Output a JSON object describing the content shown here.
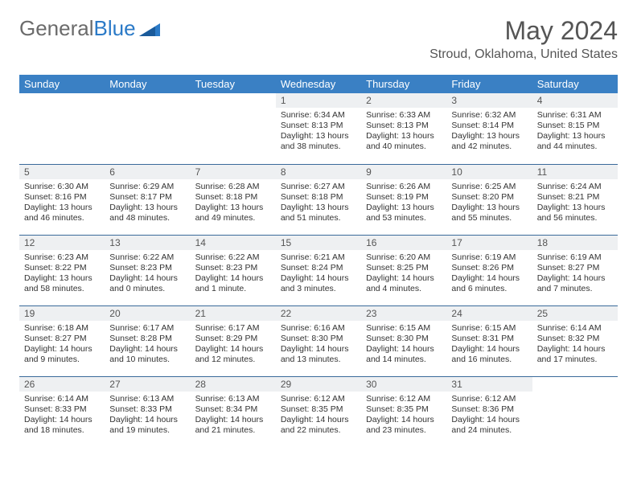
{
  "branding": {
    "logo_word1": "General",
    "logo_word2": "Blue",
    "logo_text_color": "#6b6b6b",
    "logo_accent_color": "#2b7ac7",
    "icon_color": "#2b7ac7"
  },
  "header": {
    "month_title": "May 2024",
    "location": "Stroud, Oklahoma, United States",
    "title_color": "#555555"
  },
  "calendar": {
    "header_bg": "#3a80c4",
    "header_fg": "#ffffff",
    "daynum_bg": "#eef0f2",
    "row_border": "#3a6a9a",
    "weekdays": [
      "Sunday",
      "Monday",
      "Tuesday",
      "Wednesday",
      "Thursday",
      "Friday",
      "Saturday"
    ],
    "weeks": [
      [
        {
          "empty": true
        },
        {
          "empty": true
        },
        {
          "empty": true
        },
        {
          "day": "1",
          "sunrise": "Sunrise: 6:34 AM",
          "sunset": "Sunset: 8:13 PM",
          "daylight": "Daylight: 13 hours and 38 minutes."
        },
        {
          "day": "2",
          "sunrise": "Sunrise: 6:33 AM",
          "sunset": "Sunset: 8:13 PM",
          "daylight": "Daylight: 13 hours and 40 minutes."
        },
        {
          "day": "3",
          "sunrise": "Sunrise: 6:32 AM",
          "sunset": "Sunset: 8:14 PM",
          "daylight": "Daylight: 13 hours and 42 minutes."
        },
        {
          "day": "4",
          "sunrise": "Sunrise: 6:31 AM",
          "sunset": "Sunset: 8:15 PM",
          "daylight": "Daylight: 13 hours and 44 minutes."
        }
      ],
      [
        {
          "day": "5",
          "sunrise": "Sunrise: 6:30 AM",
          "sunset": "Sunset: 8:16 PM",
          "daylight": "Daylight: 13 hours and 46 minutes."
        },
        {
          "day": "6",
          "sunrise": "Sunrise: 6:29 AM",
          "sunset": "Sunset: 8:17 PM",
          "daylight": "Daylight: 13 hours and 48 minutes."
        },
        {
          "day": "7",
          "sunrise": "Sunrise: 6:28 AM",
          "sunset": "Sunset: 8:18 PM",
          "daylight": "Daylight: 13 hours and 49 minutes."
        },
        {
          "day": "8",
          "sunrise": "Sunrise: 6:27 AM",
          "sunset": "Sunset: 8:18 PM",
          "daylight": "Daylight: 13 hours and 51 minutes."
        },
        {
          "day": "9",
          "sunrise": "Sunrise: 6:26 AM",
          "sunset": "Sunset: 8:19 PM",
          "daylight": "Daylight: 13 hours and 53 minutes."
        },
        {
          "day": "10",
          "sunrise": "Sunrise: 6:25 AM",
          "sunset": "Sunset: 8:20 PM",
          "daylight": "Daylight: 13 hours and 55 minutes."
        },
        {
          "day": "11",
          "sunrise": "Sunrise: 6:24 AM",
          "sunset": "Sunset: 8:21 PM",
          "daylight": "Daylight: 13 hours and 56 minutes."
        }
      ],
      [
        {
          "day": "12",
          "sunrise": "Sunrise: 6:23 AM",
          "sunset": "Sunset: 8:22 PM",
          "daylight": "Daylight: 13 hours and 58 minutes."
        },
        {
          "day": "13",
          "sunrise": "Sunrise: 6:22 AM",
          "sunset": "Sunset: 8:23 PM",
          "daylight": "Daylight: 14 hours and 0 minutes."
        },
        {
          "day": "14",
          "sunrise": "Sunrise: 6:22 AM",
          "sunset": "Sunset: 8:23 PM",
          "daylight": "Daylight: 14 hours and 1 minute."
        },
        {
          "day": "15",
          "sunrise": "Sunrise: 6:21 AM",
          "sunset": "Sunset: 8:24 PM",
          "daylight": "Daylight: 14 hours and 3 minutes."
        },
        {
          "day": "16",
          "sunrise": "Sunrise: 6:20 AM",
          "sunset": "Sunset: 8:25 PM",
          "daylight": "Daylight: 14 hours and 4 minutes."
        },
        {
          "day": "17",
          "sunrise": "Sunrise: 6:19 AM",
          "sunset": "Sunset: 8:26 PM",
          "daylight": "Daylight: 14 hours and 6 minutes."
        },
        {
          "day": "18",
          "sunrise": "Sunrise: 6:19 AM",
          "sunset": "Sunset: 8:27 PM",
          "daylight": "Daylight: 14 hours and 7 minutes."
        }
      ],
      [
        {
          "day": "19",
          "sunrise": "Sunrise: 6:18 AM",
          "sunset": "Sunset: 8:27 PM",
          "daylight": "Daylight: 14 hours and 9 minutes."
        },
        {
          "day": "20",
          "sunrise": "Sunrise: 6:17 AM",
          "sunset": "Sunset: 8:28 PM",
          "daylight": "Daylight: 14 hours and 10 minutes."
        },
        {
          "day": "21",
          "sunrise": "Sunrise: 6:17 AM",
          "sunset": "Sunset: 8:29 PM",
          "daylight": "Daylight: 14 hours and 12 minutes."
        },
        {
          "day": "22",
          "sunrise": "Sunrise: 6:16 AM",
          "sunset": "Sunset: 8:30 PM",
          "daylight": "Daylight: 14 hours and 13 minutes."
        },
        {
          "day": "23",
          "sunrise": "Sunrise: 6:15 AM",
          "sunset": "Sunset: 8:30 PM",
          "daylight": "Daylight: 14 hours and 14 minutes."
        },
        {
          "day": "24",
          "sunrise": "Sunrise: 6:15 AM",
          "sunset": "Sunset: 8:31 PM",
          "daylight": "Daylight: 14 hours and 16 minutes."
        },
        {
          "day": "25",
          "sunrise": "Sunrise: 6:14 AM",
          "sunset": "Sunset: 8:32 PM",
          "daylight": "Daylight: 14 hours and 17 minutes."
        }
      ],
      [
        {
          "day": "26",
          "sunrise": "Sunrise: 6:14 AM",
          "sunset": "Sunset: 8:33 PM",
          "daylight": "Daylight: 14 hours and 18 minutes."
        },
        {
          "day": "27",
          "sunrise": "Sunrise: 6:13 AM",
          "sunset": "Sunset: 8:33 PM",
          "daylight": "Daylight: 14 hours and 19 minutes."
        },
        {
          "day": "28",
          "sunrise": "Sunrise: 6:13 AM",
          "sunset": "Sunset: 8:34 PM",
          "daylight": "Daylight: 14 hours and 21 minutes."
        },
        {
          "day": "29",
          "sunrise": "Sunrise: 6:12 AM",
          "sunset": "Sunset: 8:35 PM",
          "daylight": "Daylight: 14 hours and 22 minutes."
        },
        {
          "day": "30",
          "sunrise": "Sunrise: 6:12 AM",
          "sunset": "Sunset: 8:35 PM",
          "daylight": "Daylight: 14 hours and 23 minutes."
        },
        {
          "day": "31",
          "sunrise": "Sunrise: 6:12 AM",
          "sunset": "Sunset: 8:36 PM",
          "daylight": "Daylight: 14 hours and 24 minutes."
        },
        {
          "empty": true
        }
      ]
    ]
  }
}
